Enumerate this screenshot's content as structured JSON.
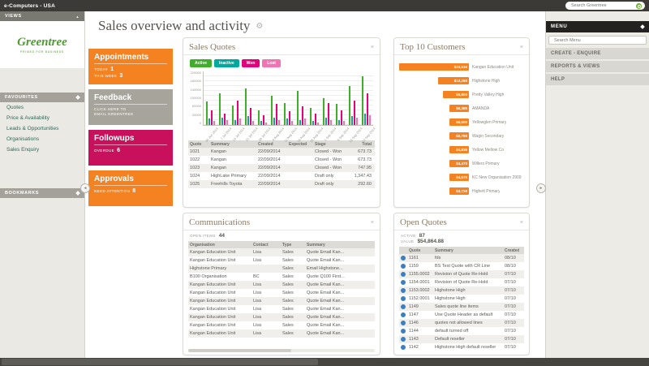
{
  "top_bar": {
    "app_title": "e-Computers - USA",
    "search_placeholder": "Search Greentree"
  },
  "icons": {
    "close": "×",
    "gear": "⚙",
    "chevron_left": "◄",
    "chevron_right": "►",
    "chevron_up": "▲"
  },
  "left_sidebar": {
    "views_label": "VIEWS",
    "logo_text": "Greentree",
    "logo_tagline": "PRIMED FOR BUSINESS",
    "favourites_label": "FAVOURITES",
    "favourites": [
      "Quotes",
      "Price & Availability",
      "Leads & Opportunities",
      "Organisations",
      "Sales Enquiry"
    ],
    "bookmarks_label": "BOOKMARKS"
  },
  "page": {
    "title": "Sales overview and activity"
  },
  "tiles": [
    {
      "label": "Appointments",
      "color": "#f58220",
      "stats": [
        {
          "k": "TODAY",
          "v": "1"
        },
        {
          "k": "THIS WEEK",
          "v": "3"
        }
      ]
    },
    {
      "label": "Feedback",
      "color": "#a6a49b",
      "stats": [
        {
          "k": "CLICK HERE TO",
          "v": ""
        },
        {
          "k": "EMAIL GREENTREE",
          "v": ""
        }
      ]
    },
    {
      "label": "Followups",
      "color": "#c8105c",
      "stats": [
        {
          "k": "OVERDUE",
          "v": "6"
        }
      ]
    },
    {
      "label": "Approvals",
      "color": "#f58220",
      "stats": [
        {
          "k": "NEED ATTENTION",
          "v": "8"
        }
      ]
    }
  ],
  "sales_quotes": {
    "title": "Sales Quotes",
    "legend": [
      {
        "label": "Active",
        "color": "#3fae2a"
      },
      {
        "label": "Inactive",
        "color": "#00a99d"
      },
      {
        "label": "Won",
        "color": "#e5007d"
      },
      {
        "label": "Lost",
        "color": "#f273b4"
      }
    ],
    "chart_data": {
      "type": "bar",
      "categories": [
        "30 Jun 2014",
        "7 Jul 2014",
        "14 Jul 2014",
        "21 Jul 2014",
        "28 Jul 2014",
        "4 Aug 2014",
        "11 Aug 2014",
        "18 Aug 2014",
        "25 Aug 2014",
        "1 Sep 2014",
        "8 Sep 2014",
        "15 Sep 2014",
        "22 Sep 2014"
      ],
      "series": [
        {
          "name": "Active",
          "color": "#3fae2a",
          "values": [
            95000,
            130000,
            80000,
            150000,
            60000,
            120000,
            90000,
            140000,
            70000,
            110000,
            85000,
            160000,
            200000
          ]
        },
        {
          "name": "Inactive",
          "color": "#00a99d",
          "values": [
            25000,
            30000,
            20000,
            35000,
            15000,
            30000,
            25000,
            20000,
            15000,
            30000,
            20000,
            35000,
            45000
          ]
        },
        {
          "name": "Won",
          "color": "#e5007d",
          "values": [
            60000,
            45000,
            100000,
            70000,
            40000,
            85000,
            55000,
            75000,
            45000,
            90000,
            60000,
            100000,
            130000
          ]
        },
        {
          "name": "Lost",
          "color": "#f273b4",
          "values": [
            15000,
            20000,
            25000,
            15000,
            10000,
            20000,
            15000,
            25000,
            10000,
            20000,
            15000,
            30000,
            40000
          ]
        }
      ],
      "ylim": [
        0,
        220000
      ],
      "yticks": [
        220000,
        180000,
        140000,
        100000,
        60000,
        20000,
        0
      ],
      "grid": true,
      "legend_position": "top"
    },
    "table": {
      "headers": [
        "Quote",
        "Summary",
        "Created",
        "Expected",
        "Stage",
        "Total"
      ],
      "rows": [
        [
          "1021",
          "Kangan",
          "22/09/2014",
          "",
          "Closed - Won",
          "673.73"
        ],
        [
          "1022",
          "Kangan",
          "22/09/2014",
          "",
          "Closed - Won",
          "673.73"
        ],
        [
          "1023",
          "Kangan",
          "22/09/2014",
          "",
          "Closed - Won",
          "747.95"
        ],
        [
          "1024",
          "HighLake Primary",
          "22/09/2014",
          "",
          "Draft only",
          "1,347.43"
        ],
        [
          "1025",
          "Freehills Toyota",
          "22/09/2014",
          "",
          "Draft only",
          "292.60"
        ]
      ]
    }
  },
  "top_customers": {
    "title": "Top 10 Customers",
    "chart_data": {
      "type": "bar",
      "orientation": "horizontal",
      "bar_color": "#f58220",
      "categories": [
        "Kangan Education Unit",
        "Highstone High",
        "Pretty Valley High",
        "AMANDA",
        "Yellowglen Primary",
        "Wagin Secondary",
        "Yellow Mellow Co",
        "Willers Primary",
        "KC New Organisation 2909",
        "Highett Primary"
      ],
      "values": [
        23516,
        10260,
        8800,
        6380,
        6000,
        5760,
        4839,
        4470,
        4070,
        3720
      ],
      "value_labels": [
        "$23,516",
        "$10,260",
        "$8,800",
        "$6,380",
        "$6,000",
        "$5,760",
        "$4,839",
        "$4,470",
        "$4,070",
        "$3,720"
      ],
      "xlim": [
        0,
        23516
      ]
    }
  },
  "communications": {
    "title": "Communications",
    "stats": [
      {
        "k": "OPEN ITEMS",
        "v": "44"
      }
    ],
    "table": {
      "headers": [
        "Organisation",
        "Contact",
        "Type",
        "Summary"
      ],
      "rows": [
        [
          "Kangan Education Unit",
          "Lisa",
          "Sales",
          "Quote Email Kan..."
        ],
        [
          "Kangan Education Unit",
          "Lisa",
          "Sales",
          "Quote Email Kan..."
        ],
        [
          "Highstone Primary",
          "",
          "Sales",
          "Email Highstone..."
        ],
        [
          "B100 Organisation",
          "BC",
          "Sales",
          "Quote Q100 First..."
        ],
        [
          "Kangan Education Unit",
          "Lisa",
          "Sales",
          "Quote Email Kan..."
        ],
        [
          "Kangan Education Unit",
          "Lisa",
          "Sales",
          "Quote Email Kan..."
        ],
        [
          "Kangan Education Unit",
          "Lisa",
          "Sales",
          "Quote Email Kan..."
        ],
        [
          "Kangan Education Unit",
          "Lisa",
          "Sales",
          "Quote Email Kan..."
        ],
        [
          "Kangan Education Unit",
          "Lisa",
          "Sales",
          "Quote Email Kan..."
        ],
        [
          "Kangan Education Unit",
          "Lisa",
          "Sales",
          "Quote Email Kan..."
        ],
        [
          "Kangan Education Unit",
          "Lisa",
          "Sales",
          "Quote Email Kan..."
        ]
      ]
    }
  },
  "open_quotes": {
    "title": "Open Quotes",
    "stats": [
      {
        "k": "ACTIVE",
        "v": "87"
      },
      {
        "k": "VALUE",
        "v": "$54,864.88"
      }
    ],
    "table": {
      "headers": [
        "Quote",
        "Summary",
        "Created"
      ],
      "rows": [
        [
          "1161",
          "fds",
          "08/10"
        ],
        [
          "1159",
          "BS Test Quote with CR Line",
          "08/10"
        ],
        [
          "1155.0002",
          "Revision of Quote Re-Hold",
          "07/10"
        ],
        [
          "1154.0001",
          "Revision of Quote Re-Hold",
          "07/10"
        ],
        [
          "1153.0002",
          "Highstone High",
          "07/10"
        ],
        [
          "1152.0001",
          "Highstone High",
          "07/10"
        ],
        [
          "1149",
          "Sales quote line items",
          "07/10"
        ],
        [
          "1147",
          "Use Quote Header as default",
          "07/10"
        ],
        [
          "1146",
          "quotes not allowed lines",
          "07/10"
        ],
        [
          "1144",
          "default turned off",
          "07/10"
        ],
        [
          "1143",
          "Default reseller",
          "07/10"
        ],
        [
          "1142",
          "Highstone High default reseller",
          "07/10"
        ]
      ]
    }
  },
  "right_sidebar": {
    "menu_label": "MENU",
    "search_placeholder": "Search Menu",
    "items": [
      "CREATE - ENQUIRE",
      "REPORTS & VIEWS",
      "HELP"
    ]
  },
  "colors": {
    "accent_orange": "#f58220",
    "crimson": "#c8105c",
    "brand_green": "#4c9c2e"
  }
}
